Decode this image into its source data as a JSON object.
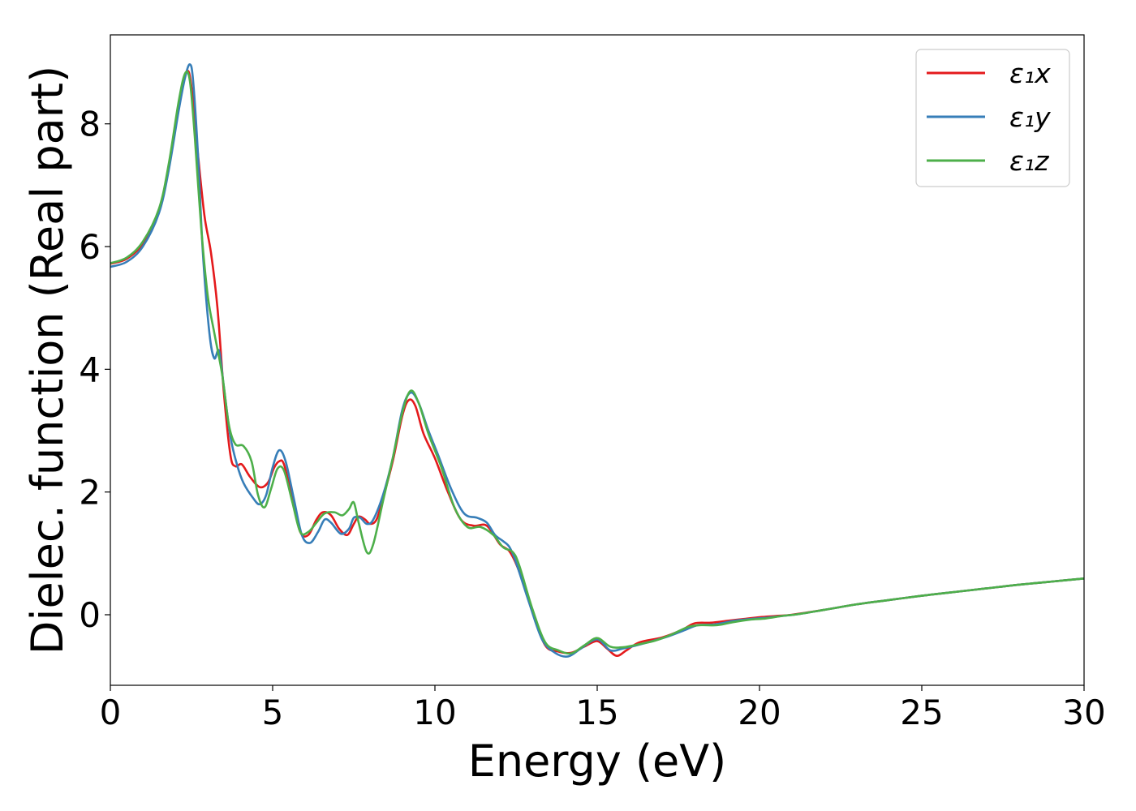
{
  "chart_data": {
    "type": "line",
    "title": "",
    "xlabel": "Energy (eV)",
    "ylabel": "Dielec. function (Real part)",
    "xlim": [
      0,
      30
    ],
    "ylim": [
      -1.15,
      9.45
    ],
    "xticks": [
      0,
      5,
      10,
      15,
      20,
      25,
      30
    ],
    "yticks": [
      0,
      2,
      4,
      6,
      8
    ],
    "grid": false,
    "legend_position": "top-right",
    "series": [
      {
        "name": "ε₁x",
        "color": "#e41a1c",
        "points": [
          [
            0,
            5.72
          ],
          [
            0.5,
            5.8
          ],
          [
            1,
            6.05
          ],
          [
            1.5,
            6.6
          ],
          [
            1.8,
            7.3
          ],
          [
            2.1,
            8.3
          ],
          [
            2.35,
            8.85
          ],
          [
            2.5,
            8.6
          ],
          [
            2.7,
            7.5
          ],
          [
            2.9,
            6.5
          ],
          [
            3.1,
            5.9
          ],
          [
            3.3,
            5.0
          ],
          [
            3.5,
            3.6
          ],
          [
            3.7,
            2.6
          ],
          [
            3.85,
            2.42
          ],
          [
            4.05,
            2.45
          ],
          [
            4.3,
            2.25
          ],
          [
            4.6,
            2.08
          ],
          [
            4.85,
            2.15
          ],
          [
            5.05,
            2.4
          ],
          [
            5.2,
            2.5
          ],
          [
            5.35,
            2.45
          ],
          [
            5.6,
            1.9
          ],
          [
            5.85,
            1.35
          ],
          [
            6.1,
            1.3
          ],
          [
            6.35,
            1.55
          ],
          [
            6.55,
            1.67
          ],
          [
            6.8,
            1.62
          ],
          [
            7.05,
            1.4
          ],
          [
            7.3,
            1.3
          ],
          [
            7.5,
            1.48
          ],
          [
            7.65,
            1.6
          ],
          [
            7.85,
            1.55
          ],
          [
            8.0,
            1.48
          ],
          [
            8.2,
            1.55
          ],
          [
            8.4,
            1.9
          ],
          [
            8.7,
            2.5
          ],
          [
            9.0,
            3.25
          ],
          [
            9.2,
            3.5
          ],
          [
            9.4,
            3.4
          ],
          [
            9.65,
            2.95
          ],
          [
            10.0,
            2.55
          ],
          [
            10.4,
            2.0
          ],
          [
            10.8,
            1.55
          ],
          [
            11.2,
            1.45
          ],
          [
            11.6,
            1.45
          ],
          [
            12.0,
            1.15
          ],
          [
            12.3,
            1.03
          ],
          [
            12.6,
            0.7
          ],
          [
            13.0,
            0.05
          ],
          [
            13.4,
            -0.5
          ],
          [
            13.8,
            -0.6
          ],
          [
            14.2,
            -0.62
          ],
          [
            14.6,
            -0.52
          ],
          [
            15.0,
            -0.43
          ],
          [
            15.3,
            -0.55
          ],
          [
            15.6,
            -0.67
          ],
          [
            15.9,
            -0.58
          ],
          [
            16.3,
            -0.45
          ],
          [
            17.0,
            -0.37
          ],
          [
            17.6,
            -0.25
          ],
          [
            18.0,
            -0.14
          ],
          [
            18.5,
            -0.13
          ],
          [
            19.0,
            -0.1
          ],
          [
            19.5,
            -0.07
          ],
          [
            20.0,
            -0.04
          ],
          [
            20.5,
            -0.02
          ],
          [
            21.0,
            0.0
          ],
          [
            22.0,
            0.08
          ],
          [
            23.0,
            0.17
          ],
          [
            24.0,
            0.24
          ],
          [
            25.0,
            0.31
          ],
          [
            26.0,
            0.37
          ],
          [
            27.0,
            0.43
          ],
          [
            28.0,
            0.49
          ],
          [
            29.0,
            0.54
          ],
          [
            30.0,
            0.59
          ]
        ]
      },
      {
        "name": "ε₁y",
        "color": "#377eb8",
        "points": [
          [
            0,
            5.67
          ],
          [
            0.5,
            5.75
          ],
          [
            1,
            6.0
          ],
          [
            1.5,
            6.55
          ],
          [
            1.8,
            7.25
          ],
          [
            2.1,
            8.2
          ],
          [
            2.3,
            8.75
          ],
          [
            2.45,
            8.97
          ],
          [
            2.55,
            8.7
          ],
          [
            2.7,
            7.5
          ],
          [
            2.85,
            5.9
          ],
          [
            3.05,
            4.6
          ],
          [
            3.2,
            4.18
          ],
          [
            3.35,
            4.3
          ],
          [
            3.5,
            3.7
          ],
          [
            3.7,
            2.9
          ],
          [
            3.9,
            2.45
          ],
          [
            4.1,
            2.15
          ],
          [
            4.4,
            1.9
          ],
          [
            4.6,
            1.8
          ],
          [
            4.8,
            1.95
          ],
          [
            5.0,
            2.4
          ],
          [
            5.2,
            2.68
          ],
          [
            5.4,
            2.5
          ],
          [
            5.65,
            1.9
          ],
          [
            5.9,
            1.3
          ],
          [
            6.15,
            1.17
          ],
          [
            6.4,
            1.35
          ],
          [
            6.6,
            1.55
          ],
          [
            6.8,
            1.5
          ],
          [
            7.1,
            1.32
          ],
          [
            7.35,
            1.4
          ],
          [
            7.5,
            1.58
          ],
          [
            7.7,
            1.58
          ],
          [
            7.9,
            1.48
          ],
          [
            8.1,
            1.55
          ],
          [
            8.4,
            1.95
          ],
          [
            8.7,
            2.55
          ],
          [
            9.0,
            3.35
          ],
          [
            9.25,
            3.62
          ],
          [
            9.5,
            3.45
          ],
          [
            9.8,
            3.0
          ],
          [
            10.1,
            2.6
          ],
          [
            10.5,
            2.05
          ],
          [
            10.9,
            1.65
          ],
          [
            11.3,
            1.58
          ],
          [
            11.6,
            1.5
          ],
          [
            11.85,
            1.3
          ],
          [
            12.1,
            1.2
          ],
          [
            12.3,
            1.1
          ],
          [
            12.5,
            0.85
          ],
          [
            12.9,
            0.2
          ],
          [
            13.3,
            -0.4
          ],
          [
            13.7,
            -0.62
          ],
          [
            14.1,
            -0.68
          ],
          [
            14.5,
            -0.55
          ],
          [
            15.0,
            -0.4
          ],
          [
            15.4,
            -0.58
          ],
          [
            15.8,
            -0.55
          ],
          [
            16.2,
            -0.5
          ],
          [
            16.7,
            -0.43
          ],
          [
            17.2,
            -0.35
          ],
          [
            17.7,
            -0.25
          ],
          [
            18.1,
            -0.17
          ],
          [
            18.6,
            -0.16
          ],
          [
            19.2,
            -0.1
          ],
          [
            19.7,
            -0.07
          ],
          [
            20.2,
            -0.05
          ],
          [
            20.7,
            -0.02
          ],
          [
            21.2,
            0.01
          ],
          [
            22.0,
            0.08
          ],
          [
            23.0,
            0.17
          ],
          [
            24.0,
            0.24
          ],
          [
            25.0,
            0.31
          ],
          [
            26.0,
            0.37
          ],
          [
            27.0,
            0.43
          ],
          [
            28.0,
            0.49
          ],
          [
            29.0,
            0.54
          ],
          [
            30.0,
            0.59
          ]
        ]
      },
      {
        "name": "ε₁z",
        "color": "#4daf4a",
        "points": [
          [
            0,
            5.73
          ],
          [
            0.5,
            5.82
          ],
          [
            1,
            6.08
          ],
          [
            1.5,
            6.62
          ],
          [
            1.8,
            7.35
          ],
          [
            2.1,
            8.35
          ],
          [
            2.3,
            8.82
          ],
          [
            2.45,
            8.7
          ],
          [
            2.6,
            7.8
          ],
          [
            2.8,
            6.3
          ],
          [
            3.0,
            5.2
          ],
          [
            3.2,
            4.6
          ],
          [
            3.45,
            3.9
          ],
          [
            3.65,
            3.1
          ],
          [
            3.85,
            2.78
          ],
          [
            4.1,
            2.75
          ],
          [
            4.35,
            2.5
          ],
          [
            4.55,
            1.95
          ],
          [
            4.75,
            1.75
          ],
          [
            4.95,
            2.05
          ],
          [
            5.15,
            2.38
          ],
          [
            5.35,
            2.35
          ],
          [
            5.6,
            1.85
          ],
          [
            5.85,
            1.35
          ],
          [
            6.1,
            1.35
          ],
          [
            6.35,
            1.5
          ],
          [
            6.6,
            1.65
          ],
          [
            6.9,
            1.67
          ],
          [
            7.15,
            1.62
          ],
          [
            7.35,
            1.72
          ],
          [
            7.5,
            1.83
          ],
          [
            7.65,
            1.5
          ],
          [
            7.9,
            1.02
          ],
          [
            8.1,
            1.15
          ],
          [
            8.4,
            1.85
          ],
          [
            8.7,
            2.55
          ],
          [
            9.0,
            3.3
          ],
          [
            9.25,
            3.65
          ],
          [
            9.5,
            3.45
          ],
          [
            9.8,
            2.95
          ],
          [
            10.2,
            2.4
          ],
          [
            10.6,
            1.75
          ],
          [
            11.0,
            1.43
          ],
          [
            11.4,
            1.43
          ],
          [
            11.8,
            1.3
          ],
          [
            12.1,
            1.1
          ],
          [
            12.4,
            1.02
          ],
          [
            12.6,
            0.8
          ],
          [
            13.0,
            0.1
          ],
          [
            13.4,
            -0.45
          ],
          [
            13.8,
            -0.58
          ],
          [
            14.2,
            -0.63
          ],
          [
            14.6,
            -0.5
          ],
          [
            15.0,
            -0.38
          ],
          [
            15.4,
            -0.52
          ],
          [
            15.8,
            -0.53
          ],
          [
            16.3,
            -0.48
          ],
          [
            16.8,
            -0.42
          ],
          [
            17.3,
            -0.32
          ],
          [
            17.8,
            -0.2
          ],
          [
            18.2,
            -0.17
          ],
          [
            18.7,
            -0.17
          ],
          [
            19.2,
            -0.12
          ],
          [
            19.7,
            -0.08
          ],
          [
            20.2,
            -0.06
          ],
          [
            20.7,
            -0.02
          ],
          [
            21.2,
            0.01
          ],
          [
            22.0,
            0.08
          ],
          [
            23.0,
            0.17
          ],
          [
            24.0,
            0.24
          ],
          [
            25.0,
            0.31
          ],
          [
            26.0,
            0.37
          ],
          [
            27.0,
            0.43
          ],
          [
            28.0,
            0.49
          ],
          [
            29.0,
            0.54
          ],
          [
            30.0,
            0.59
          ]
        ]
      }
    ]
  }
}
